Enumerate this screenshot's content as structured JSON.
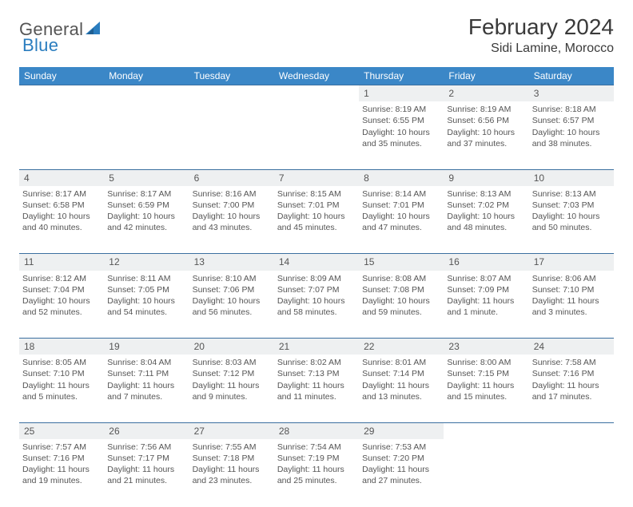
{
  "logo": {
    "text1": "General",
    "text2": "Blue"
  },
  "title": "February 2024",
  "location": "Sidi Lamine, Morocco",
  "colors": {
    "header_bg": "#3b87c7",
    "header_text": "#ffffff",
    "rule": "#3b6fa0",
    "daynum_bg": "#eef0f1",
    "text": "#555555"
  },
  "weekdays": [
    "Sunday",
    "Monday",
    "Tuesday",
    "Wednesday",
    "Thursday",
    "Friday",
    "Saturday"
  ],
  "weeks": [
    [
      null,
      null,
      null,
      null,
      {
        "n": "1",
        "sr": "Sunrise: 8:19 AM",
        "ss": "Sunset: 6:55 PM",
        "d1": "Daylight: 10 hours",
        "d2": "and 35 minutes."
      },
      {
        "n": "2",
        "sr": "Sunrise: 8:19 AM",
        "ss": "Sunset: 6:56 PM",
        "d1": "Daylight: 10 hours",
        "d2": "and 37 minutes."
      },
      {
        "n": "3",
        "sr": "Sunrise: 8:18 AM",
        "ss": "Sunset: 6:57 PM",
        "d1": "Daylight: 10 hours",
        "d2": "and 38 minutes."
      }
    ],
    [
      {
        "n": "4",
        "sr": "Sunrise: 8:17 AM",
        "ss": "Sunset: 6:58 PM",
        "d1": "Daylight: 10 hours",
        "d2": "and 40 minutes."
      },
      {
        "n": "5",
        "sr": "Sunrise: 8:17 AM",
        "ss": "Sunset: 6:59 PM",
        "d1": "Daylight: 10 hours",
        "d2": "and 42 minutes."
      },
      {
        "n": "6",
        "sr": "Sunrise: 8:16 AM",
        "ss": "Sunset: 7:00 PM",
        "d1": "Daylight: 10 hours",
        "d2": "and 43 minutes."
      },
      {
        "n": "7",
        "sr": "Sunrise: 8:15 AM",
        "ss": "Sunset: 7:01 PM",
        "d1": "Daylight: 10 hours",
        "d2": "and 45 minutes."
      },
      {
        "n": "8",
        "sr": "Sunrise: 8:14 AM",
        "ss": "Sunset: 7:01 PM",
        "d1": "Daylight: 10 hours",
        "d2": "and 47 minutes."
      },
      {
        "n": "9",
        "sr": "Sunrise: 8:13 AM",
        "ss": "Sunset: 7:02 PM",
        "d1": "Daylight: 10 hours",
        "d2": "and 48 minutes."
      },
      {
        "n": "10",
        "sr": "Sunrise: 8:13 AM",
        "ss": "Sunset: 7:03 PM",
        "d1": "Daylight: 10 hours",
        "d2": "and 50 minutes."
      }
    ],
    [
      {
        "n": "11",
        "sr": "Sunrise: 8:12 AM",
        "ss": "Sunset: 7:04 PM",
        "d1": "Daylight: 10 hours",
        "d2": "and 52 minutes."
      },
      {
        "n": "12",
        "sr": "Sunrise: 8:11 AM",
        "ss": "Sunset: 7:05 PM",
        "d1": "Daylight: 10 hours",
        "d2": "and 54 minutes."
      },
      {
        "n": "13",
        "sr": "Sunrise: 8:10 AM",
        "ss": "Sunset: 7:06 PM",
        "d1": "Daylight: 10 hours",
        "d2": "and 56 minutes."
      },
      {
        "n": "14",
        "sr": "Sunrise: 8:09 AM",
        "ss": "Sunset: 7:07 PM",
        "d1": "Daylight: 10 hours",
        "d2": "and 58 minutes."
      },
      {
        "n": "15",
        "sr": "Sunrise: 8:08 AM",
        "ss": "Sunset: 7:08 PM",
        "d1": "Daylight: 10 hours",
        "d2": "and 59 minutes."
      },
      {
        "n": "16",
        "sr": "Sunrise: 8:07 AM",
        "ss": "Sunset: 7:09 PM",
        "d1": "Daylight: 11 hours",
        "d2": "and 1 minute."
      },
      {
        "n": "17",
        "sr": "Sunrise: 8:06 AM",
        "ss": "Sunset: 7:10 PM",
        "d1": "Daylight: 11 hours",
        "d2": "and 3 minutes."
      }
    ],
    [
      {
        "n": "18",
        "sr": "Sunrise: 8:05 AM",
        "ss": "Sunset: 7:10 PM",
        "d1": "Daylight: 11 hours",
        "d2": "and 5 minutes."
      },
      {
        "n": "19",
        "sr": "Sunrise: 8:04 AM",
        "ss": "Sunset: 7:11 PM",
        "d1": "Daylight: 11 hours",
        "d2": "and 7 minutes."
      },
      {
        "n": "20",
        "sr": "Sunrise: 8:03 AM",
        "ss": "Sunset: 7:12 PM",
        "d1": "Daylight: 11 hours",
        "d2": "and 9 minutes."
      },
      {
        "n": "21",
        "sr": "Sunrise: 8:02 AM",
        "ss": "Sunset: 7:13 PM",
        "d1": "Daylight: 11 hours",
        "d2": "and 11 minutes."
      },
      {
        "n": "22",
        "sr": "Sunrise: 8:01 AM",
        "ss": "Sunset: 7:14 PM",
        "d1": "Daylight: 11 hours",
        "d2": "and 13 minutes."
      },
      {
        "n": "23",
        "sr": "Sunrise: 8:00 AM",
        "ss": "Sunset: 7:15 PM",
        "d1": "Daylight: 11 hours",
        "d2": "and 15 minutes."
      },
      {
        "n": "24",
        "sr": "Sunrise: 7:58 AM",
        "ss": "Sunset: 7:16 PM",
        "d1": "Daylight: 11 hours",
        "d2": "and 17 minutes."
      }
    ],
    [
      {
        "n": "25",
        "sr": "Sunrise: 7:57 AM",
        "ss": "Sunset: 7:16 PM",
        "d1": "Daylight: 11 hours",
        "d2": "and 19 minutes."
      },
      {
        "n": "26",
        "sr": "Sunrise: 7:56 AM",
        "ss": "Sunset: 7:17 PM",
        "d1": "Daylight: 11 hours",
        "d2": "and 21 minutes."
      },
      {
        "n": "27",
        "sr": "Sunrise: 7:55 AM",
        "ss": "Sunset: 7:18 PM",
        "d1": "Daylight: 11 hours",
        "d2": "and 23 minutes."
      },
      {
        "n": "28",
        "sr": "Sunrise: 7:54 AM",
        "ss": "Sunset: 7:19 PM",
        "d1": "Daylight: 11 hours",
        "d2": "and 25 minutes."
      },
      {
        "n": "29",
        "sr": "Sunrise: 7:53 AM",
        "ss": "Sunset: 7:20 PM",
        "d1": "Daylight: 11 hours",
        "d2": "and 27 minutes."
      },
      null,
      null
    ]
  ]
}
